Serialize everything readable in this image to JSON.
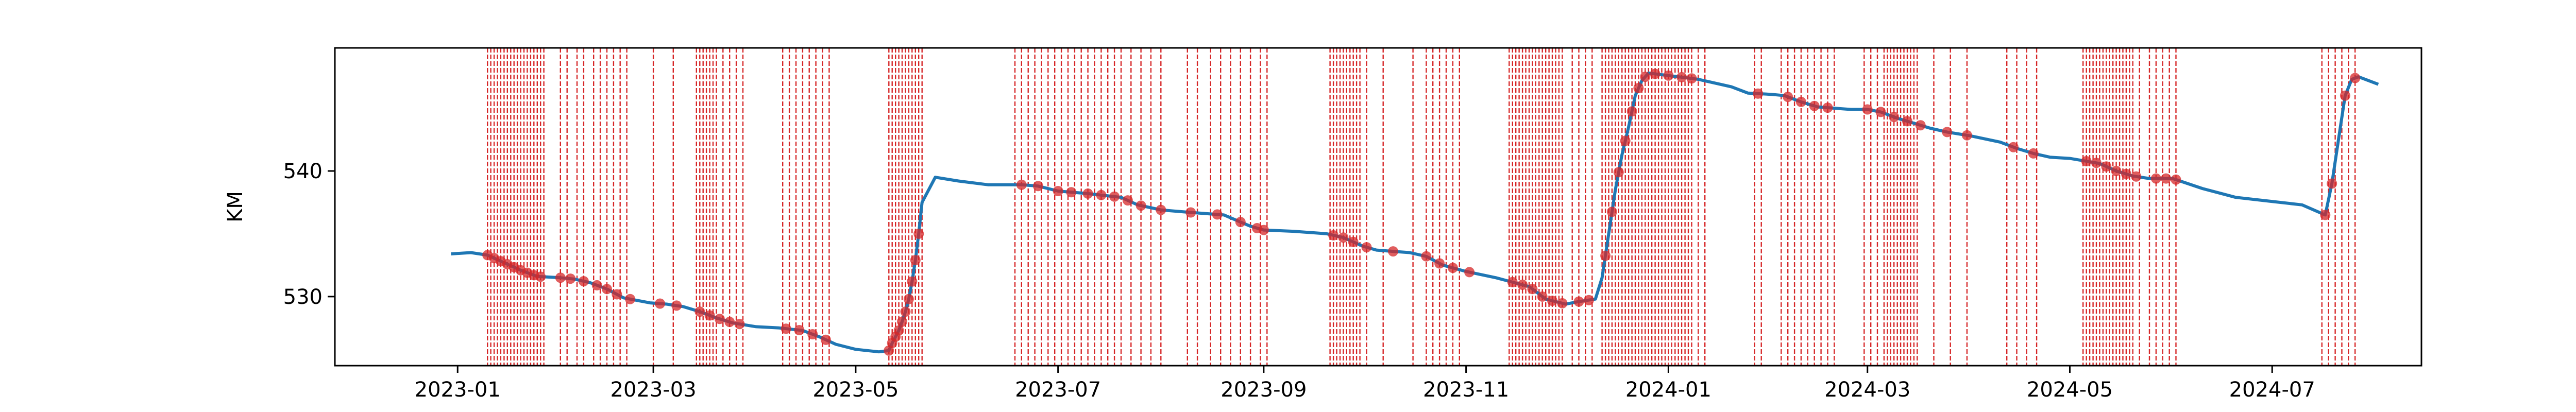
{
  "chart_data": {
    "type": "line",
    "title": "",
    "xlabel": "",
    "ylabel": "KM",
    "x_axis": {
      "type": "date",
      "range": [
        "2022-11-25",
        "2024-08-15"
      ],
      "ticks": [
        {
          "value": "2023-01-01",
          "label": "2023-01"
        },
        {
          "value": "2023-03-01",
          "label": "2023-03"
        },
        {
          "value": "2023-05-01",
          "label": "2023-05"
        },
        {
          "value": "2023-07-01",
          "label": "2023-07"
        },
        {
          "value": "2023-09-01",
          "label": "2023-09"
        },
        {
          "value": "2023-11-01",
          "label": "2023-11"
        },
        {
          "value": "2024-01-01",
          "label": "2024-01"
        },
        {
          "value": "2024-03-01",
          "label": "2024-03"
        },
        {
          "value": "2024-05-01",
          "label": "2024-05"
        },
        {
          "value": "2024-07-01",
          "label": "2024-07"
        }
      ]
    },
    "y_axis": {
      "range": [
        524.5,
        549.8
      ],
      "ticks": [
        {
          "value": 530,
          "label": "530"
        },
        {
          "value": 540,
          "label": "540"
        }
      ]
    },
    "grid": false,
    "legend": "none",
    "colors": {
      "line": "#1f77b4",
      "marker": "#d62728",
      "event": "#d62728"
    },
    "series": [
      {
        "x": [
          "2022-12-30",
          "2023-01-05",
          "2023-01-10",
          "2023-01-15",
          "2023-01-20",
          "2023-01-25",
          "2023-02-01",
          "2023-02-05",
          "2023-02-10",
          "2023-02-15",
          "2023-02-20",
          "2023-02-28",
          "2023-03-05",
          "2023-03-10",
          "2023-03-15",
          "2023-03-20",
          "2023-03-25",
          "2023-04-01",
          "2023-04-08",
          "2023-04-15",
          "2023-04-20",
          "2023-04-25",
          "2023-05-01",
          "2023-05-08",
          "2023-05-11",
          "2023-05-12",
          "2023-05-13",
          "2023-05-14",
          "2023-05-15",
          "2023-05-16",
          "2023-05-17",
          "2023-05-18",
          "2023-05-19",
          "2023-05-20",
          "2023-05-21",
          "2023-05-25",
          "2023-06-01",
          "2023-06-10",
          "2023-06-20",
          "2023-06-25",
          "2023-07-01",
          "2023-07-10",
          "2023-07-20",
          "2023-07-25",
          "2023-08-01",
          "2023-08-10",
          "2023-08-20",
          "2023-08-28",
          "2023-09-01",
          "2023-09-10",
          "2023-09-20",
          "2023-09-25",
          "2023-10-01",
          "2023-10-05",
          "2023-10-10",
          "2023-10-15",
          "2023-10-20",
          "2023-10-25",
          "2023-11-01",
          "2023-11-10",
          "2023-11-20",
          "2023-11-25",
          "2023-12-01",
          "2023-12-05",
          "2023-12-10",
          "2023-12-12",
          "2023-12-14",
          "2023-12-16",
          "2023-12-18",
          "2023-12-20",
          "2023-12-22",
          "2023-12-24",
          "2023-12-26",
          "2024-01-01",
          "2024-01-10",
          "2024-01-20",
          "2024-01-25",
          "2024-02-01",
          "2024-02-05",
          "2024-02-10",
          "2024-02-15",
          "2024-02-25",
          "2024-03-01",
          "2024-03-05",
          "2024-03-10",
          "2024-03-15",
          "2024-03-20",
          "2024-03-25",
          "2024-04-01",
          "2024-04-10",
          "2024-04-15",
          "2024-04-20",
          "2024-04-25",
          "2024-05-01",
          "2024-05-10",
          "2024-05-15",
          "2024-05-20",
          "2024-05-25",
          "2024-06-01",
          "2024-06-10",
          "2024-06-20",
          "2024-06-30",
          "2024-07-10",
          "2024-07-17",
          "2024-07-19",
          "2024-07-21",
          "2024-07-23",
          "2024-07-25",
          "2024-07-27",
          "2024-08-02"
        ],
        "y": [
          533.4,
          533.5,
          533.3,
          532.7,
          532.1,
          531.6,
          531.5,
          531.4,
          531.1,
          530.6,
          529.9,
          529.5,
          529.4,
          529.2,
          528.8,
          528.3,
          527.9,
          527.6,
          527.5,
          527.3,
          526.8,
          526.2,
          525.8,
          525.6,
          525.7,
          526.3,
          526.8,
          527.3,
          528.0,
          528.8,
          529.8,
          531.2,
          532.9,
          535.0,
          537.5,
          539.5,
          539.2,
          538.9,
          538.9,
          538.8,
          538.4,
          538.2,
          537.9,
          537.3,
          536.9,
          536.7,
          536.5,
          535.6,
          535.3,
          535.2,
          535.0,
          534.7,
          534.0,
          533.7,
          533.6,
          533.5,
          533.2,
          532.5,
          532.0,
          531.5,
          530.8,
          529.8,
          529.4,
          529.6,
          529.8,
          531.5,
          535.0,
          538.5,
          541.3,
          543.5,
          546.0,
          547.2,
          547.8,
          547.6,
          547.3,
          546.7,
          546.2,
          546.1,
          546.0,
          545.5,
          545.1,
          544.9,
          544.9,
          544.7,
          544.2,
          543.8,
          543.4,
          543.1,
          542.8,
          542.3,
          541.8,
          541.4,
          541.1,
          541.0,
          540.6,
          540.0,
          539.6,
          539.4,
          539.4,
          538.6,
          537.9,
          537.6,
          537.3,
          536.5,
          539.0,
          542.5,
          546.0,
          547.3,
          547.5,
          546.9
        ]
      }
    ],
    "marker_x": [
      "2023-01-10",
      "2023-01-12",
      "2023-01-14",
      "2023-01-16",
      "2023-01-18",
      "2023-01-20",
      "2023-01-22",
      "2023-01-24",
      "2023-01-26",
      "2023-02-01",
      "2023-02-04",
      "2023-02-08",
      "2023-02-12",
      "2023-02-15",
      "2023-02-18",
      "2023-02-22",
      "2023-03-03",
      "2023-03-08",
      "2023-03-15",
      "2023-03-18",
      "2023-03-21",
      "2023-03-24",
      "2023-03-27",
      "2023-04-10",
      "2023-04-14",
      "2023-04-18",
      "2023-04-22",
      "2023-05-11",
      "2023-05-12",
      "2023-05-13",
      "2023-05-14",
      "2023-05-15",
      "2023-05-16",
      "2023-05-17",
      "2023-05-18",
      "2023-05-19",
      "2023-05-20",
      "2023-06-20",
      "2023-06-25",
      "2023-07-01",
      "2023-07-05",
      "2023-07-10",
      "2023-07-14",
      "2023-07-18",
      "2023-07-22",
      "2023-07-26",
      "2023-08-01",
      "2023-08-10",
      "2023-08-18",
      "2023-08-25",
      "2023-08-30",
      "2023-09-01",
      "2023-09-22",
      "2023-09-25",
      "2023-09-28",
      "2023-10-02",
      "2023-10-10",
      "2023-10-20",
      "2023-10-24",
      "2023-10-28",
      "2023-11-02",
      "2023-11-15",
      "2023-11-18",
      "2023-11-21",
      "2023-11-24",
      "2023-11-27",
      "2023-11-30",
      "2023-12-05",
      "2023-12-08",
      "2023-12-13",
      "2023-12-15",
      "2023-12-17",
      "2023-12-19",
      "2023-12-21",
      "2023-12-23",
      "2023-12-25",
      "2023-12-28",
      "2024-01-01",
      "2024-01-05",
      "2024-01-08",
      "2024-01-28",
      "2024-02-06",
      "2024-02-10",
      "2024-02-14",
      "2024-02-18",
      "2024-03-01",
      "2024-03-05",
      "2024-03-09",
      "2024-03-13",
      "2024-03-17",
      "2024-03-25",
      "2024-03-31",
      "2024-04-14",
      "2024-04-20",
      "2024-05-06",
      "2024-05-09",
      "2024-05-12",
      "2024-05-15",
      "2024-05-18",
      "2024-05-21",
      "2024-05-27",
      "2024-05-30",
      "2024-06-02",
      "2024-07-17",
      "2024-07-19",
      "2024-07-23",
      "2024-07-26"
    ],
    "event_dates": [
      "2023-01-10",
      "2023-01-11",
      "2023-01-12",
      "2023-01-13",
      "2023-01-14",
      "2023-01-15",
      "2023-01-16",
      "2023-01-17",
      "2023-01-18",
      "2023-01-19",
      "2023-01-20",
      "2023-01-21",
      "2023-01-22",
      "2023-01-23",
      "2023-01-24",
      "2023-01-25",
      "2023-01-26",
      "2023-01-27",
      "2023-02-01",
      "2023-02-03",
      "2023-02-06",
      "2023-02-08",
      "2023-02-11",
      "2023-02-13",
      "2023-02-15",
      "2023-02-17",
      "2023-02-19",
      "2023-02-21",
      "2023-03-01",
      "2023-03-07",
      "2023-03-14",
      "2023-03-15",
      "2023-03-16",
      "2023-03-17",
      "2023-03-18",
      "2023-03-19",
      "2023-03-20",
      "2023-03-22",
      "2023-03-24",
      "2023-03-26",
      "2023-03-28",
      "2023-04-09",
      "2023-04-11",
      "2023-04-13",
      "2023-04-15",
      "2023-04-17",
      "2023-04-19",
      "2023-04-21",
      "2023-04-23",
      "2023-05-11",
      "2023-05-12",
      "2023-05-13",
      "2023-05-14",
      "2023-05-15",
      "2023-05-16",
      "2023-05-17",
      "2023-05-18",
      "2023-05-19",
      "2023-05-20",
      "2023-05-21",
      "2023-06-18",
      "2023-06-20",
      "2023-06-22",
      "2023-06-24",
      "2023-06-26",
      "2023-06-28",
      "2023-06-30",
      "2023-07-02",
      "2023-07-04",
      "2023-07-06",
      "2023-07-08",
      "2023-07-10",
      "2023-07-12",
      "2023-07-14",
      "2023-07-16",
      "2023-07-18",
      "2023-07-20",
      "2023-07-23",
      "2023-07-26",
      "2023-07-29",
      "2023-08-01",
      "2023-08-09",
      "2023-08-12",
      "2023-08-16",
      "2023-08-19",
      "2023-08-22",
      "2023-08-25",
      "2023-08-28",
      "2023-08-31",
      "2023-09-02",
      "2023-09-21",
      "2023-09-22",
      "2023-09-23",
      "2023-09-24",
      "2023-09-25",
      "2023-09-26",
      "2023-09-27",
      "2023-09-28",
      "2023-09-29",
      "2023-09-30",
      "2023-10-02",
      "2023-10-07",
      "2023-10-16",
      "2023-10-20",
      "2023-10-22",
      "2023-10-24",
      "2023-10-26",
      "2023-10-28",
      "2023-10-30",
      "2023-11-14",
      "2023-11-15",
      "2023-11-16",
      "2023-11-17",
      "2023-11-18",
      "2023-11-19",
      "2023-11-20",
      "2023-11-21",
      "2023-11-22",
      "2023-11-23",
      "2023-11-24",
      "2023-11-25",
      "2023-11-26",
      "2023-11-27",
      "2023-11-28",
      "2023-11-29",
      "2023-11-30",
      "2023-12-03",
      "2023-12-05",
      "2023-12-07",
      "2023-12-09",
      "2023-12-12",
      "2023-12-13",
      "2023-12-14",
      "2023-12-15",
      "2023-12-16",
      "2023-12-17",
      "2023-12-18",
      "2023-12-19",
      "2023-12-20",
      "2023-12-21",
      "2023-12-22",
      "2023-12-23",
      "2023-12-24",
      "2023-12-25",
      "2023-12-26",
      "2023-12-27",
      "2023-12-28",
      "2023-12-29",
      "2023-12-30",
      "2023-12-31",
      "2024-01-01",
      "2024-01-02",
      "2024-01-03",
      "2024-01-04",
      "2024-01-05",
      "2024-01-06",
      "2024-01-07",
      "2024-01-08",
      "2024-01-10",
      "2024-01-12",
      "2024-01-27",
      "2024-01-29",
      "2024-02-04",
      "2024-02-06",
      "2024-02-08",
      "2024-02-10",
      "2024-02-12",
      "2024-02-14",
      "2024-02-16",
      "2024-02-18",
      "2024-02-20",
      "2024-02-29",
      "2024-03-02",
      "2024-03-04",
      "2024-03-06",
      "2024-03-07",
      "2024-03-08",
      "2024-03-09",
      "2024-03-10",
      "2024-03-11",
      "2024-03-12",
      "2024-03-13",
      "2024-03-14",
      "2024-03-15",
      "2024-03-16",
      "2024-03-21",
      "2024-03-26",
      "2024-03-31",
      "2024-04-12",
      "2024-04-15",
      "2024-04-18",
      "2024-04-21",
      "2024-05-05",
      "2024-05-06",
      "2024-05-07",
      "2024-05-08",
      "2024-05-09",
      "2024-05-10",
      "2024-05-11",
      "2024-05-12",
      "2024-05-13",
      "2024-05-14",
      "2024-05-15",
      "2024-05-16",
      "2024-05-17",
      "2024-05-18",
      "2024-05-19",
      "2024-05-20",
      "2024-05-22",
      "2024-05-25",
      "2024-05-27",
      "2024-05-29",
      "2024-05-31",
      "2024-06-02",
      "2024-07-16",
      "2024-07-18",
      "2024-07-20",
      "2024-07-22",
      "2024-07-24",
      "2024-07-26"
    ]
  }
}
